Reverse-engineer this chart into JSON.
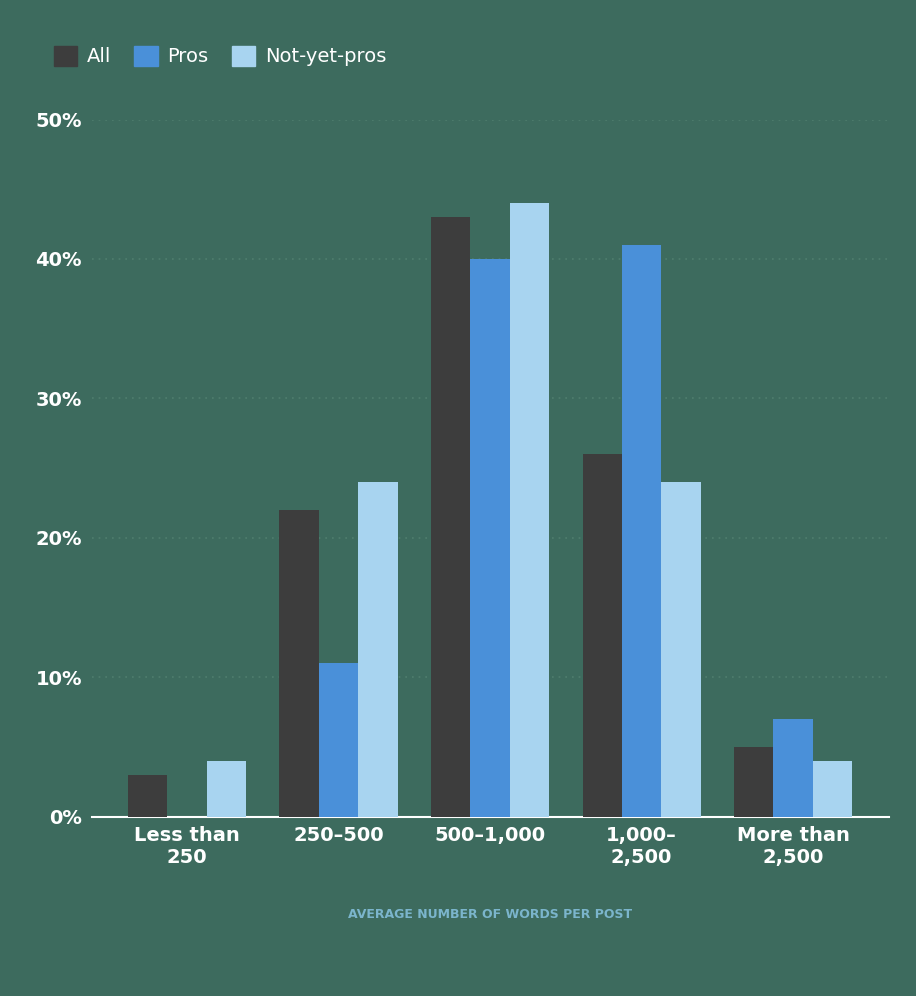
{
  "categories_display": [
    "Less than\n250",
    "250–500",
    "500–1,000",
    "1,000–\n2,500",
    "More than\n2,500"
  ],
  "all_values": [
    3,
    22,
    43,
    26,
    5
  ],
  "pros_values": [
    0,
    11,
    40,
    41,
    7
  ],
  "not_yet_pros_values": [
    4,
    24,
    44,
    24,
    4
  ],
  "color_all": "#3d3d3d",
  "color_pros": "#4a90d9",
  "color_not_yet_pros": "#a8d4f0",
  "xlabel": "AVERAGE NUMBER OF WORDS PER POST",
  "xlabel_color": "#7bb5cc",
  "ytick_labels": [
    "0%",
    "10%",
    "20%",
    "30%",
    "40%",
    "50%"
  ],
  "ytick_values": [
    0,
    10,
    20,
    30,
    40,
    50
  ],
  "ylim": [
    0,
    50
  ],
  "legend_labels": [
    "All",
    "Pros",
    "Not-yet-pros"
  ],
  "background_color": "#3d6b5e",
  "grid_dot_color": "#4f7e6e",
  "bar_width": 0.26,
  "tick_fontsize": 14,
  "legend_fontsize": 14,
  "xlabel_fontsize": 9
}
